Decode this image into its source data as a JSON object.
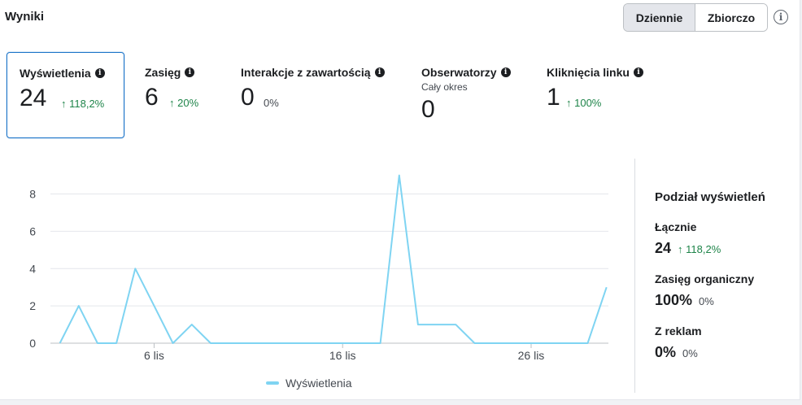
{
  "header": {
    "title": "Wyniki",
    "toggle": {
      "daily": "Dziennie",
      "cumulative": "Zbiorczo",
      "active": "daily"
    },
    "info_icon": "info-circle-icon"
  },
  "metrics": [
    {
      "label": "Wyświetlenia",
      "value": "24",
      "change": "↑ 118,2%",
      "trend": "up",
      "selected": true
    },
    {
      "label": "Zasięg",
      "value": "6",
      "change": "↑ 20%",
      "trend": "up",
      "selected": false
    },
    {
      "label": "Interakcje z zawartością",
      "value": "0",
      "change": "0%",
      "trend": "neutral",
      "selected": false
    },
    {
      "label": "Obserwatorzy",
      "sublabel": "Cały okres",
      "value": "0",
      "selected": false
    },
    {
      "label": "Kliknięcia linku",
      "value": "1",
      "change": "↑ 100%",
      "trend": "up",
      "selected": false
    }
  ],
  "chart_data": {
    "type": "line",
    "x": [
      1,
      2,
      3,
      4,
      5,
      6,
      7,
      8,
      9,
      10,
      11,
      12,
      13,
      14,
      15,
      16,
      17,
      18,
      19,
      20,
      21,
      22,
      23,
      24,
      25,
      26,
      27,
      28,
      29,
      30
    ],
    "series": [
      {
        "name": "Wyświetlenia",
        "color": "#7fd4f2",
        "values": [
          0,
          2,
          0,
          0,
          4,
          2,
          0,
          1,
          0,
          0,
          0,
          0,
          0,
          0,
          0,
          0,
          0,
          0,
          9,
          1,
          1,
          1,
          0,
          0,
          0,
          0,
          0,
          0,
          0,
          3
        ]
      }
    ],
    "xticks": [
      {
        "x": 6,
        "label": "6 lis"
      },
      {
        "x": 16,
        "label": "16 lis"
      },
      {
        "x": 26,
        "label": "26 lis"
      }
    ],
    "yticks": [
      0,
      2,
      4,
      6,
      8
    ],
    "ylim": [
      0,
      9.2
    ],
    "xlim": [
      0.5,
      30.1
    ],
    "grid": true,
    "legend": "bottom-center"
  },
  "breakdown": {
    "title": "Podział wyświetleń",
    "total_label": "Łącznie",
    "total_value": "24",
    "total_change": "↑ 118,2%",
    "organic_label": "Zasięg organiczny",
    "organic_value": "100%",
    "organic_change": "0%",
    "ads_label": "Z reklam",
    "ads_value": "0%",
    "ads_change": "0%"
  }
}
